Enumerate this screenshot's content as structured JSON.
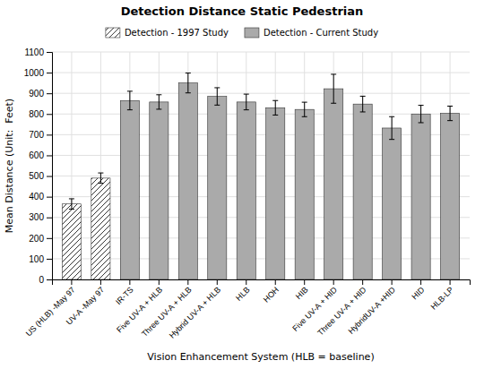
{
  "chart_data": {
    "type": "bar",
    "title": "Detection Distance Static Pedestrian",
    "xlabel": "Vision Enhancement System (HLB = baseline)",
    "ylabel": "Mean Distance (Unit:  Feet)",
    "categories": [
      "US (HLB) -May 97",
      "UV-A -May 97",
      "IR-TS",
      "Five UV-A + HLB",
      "Three UV-A + HLB",
      "Hybrid UV-A + HLB",
      "HLB",
      "HOH",
      "HIB",
      "Five UV-A + HID",
      "Three UV-A + HID",
      "HybridUV-A +HID",
      "HID",
      "HLB-LP"
    ],
    "series": [
      {
        "name": "Detection - 1997 Study",
        "color": "#ffffff",
        "values": [
          365,
          490,
          null,
          null,
          null,
          null,
          null,
          null,
          null,
          null,
          null,
          null,
          null,
          null
        ],
        "errors": [
          25,
          25,
          null,
          null,
          null,
          null,
          null,
          null,
          null,
          null,
          null,
          null,
          null,
          null
        ]
      },
      {
        "name": "Detection - Current Study",
        "color": "#aaaaaa",
        "values": [
          null,
          null,
          865,
          858,
          950,
          885,
          858,
          830,
          822,
          922,
          848,
          732,
          800,
          803
        ],
        "errors": [
          null,
          null,
          45,
          35,
          48,
          42,
          38,
          35,
          35,
          70,
          38,
          55,
          42,
          35
        ]
      }
    ],
    "ylim": [
      0,
      1100
    ],
    "yticks": [
      0,
      100,
      200,
      300,
      400,
      500,
      600,
      700,
      800,
      900,
      1000,
      1100
    ],
    "grid": true,
    "legend": "top"
  }
}
